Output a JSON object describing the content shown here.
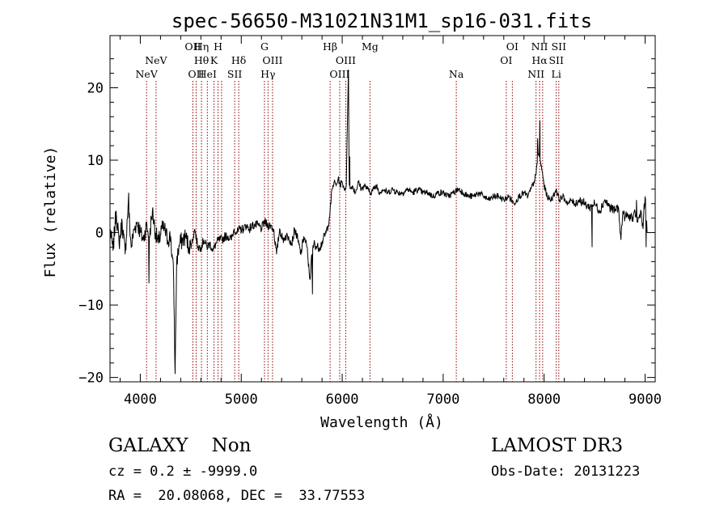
{
  "chart_data": {
    "type": "line",
    "title": "spec-56650-M31021N31M1_sp16-031.fits",
    "xlabel": "Wavelength (Å)",
    "ylabel": "Flux (relative)",
    "xlim": [
      3700,
      9100
    ],
    "ylim": [
      -20.6,
      27.2
    ],
    "x_ticks": [
      4000,
      5000,
      6000,
      7000,
      8000,
      9000
    ],
    "y_ticks": [
      -20,
      -10,
      0,
      10,
      20
    ],
    "grid": false,
    "line_color": "#000000",
    "marker_color": "#8b0000",
    "series": [
      {
        "x": [
          3700,
          3730,
          3760,
          3790,
          3820,
          3850,
          3880,
          3910,
          3940,
          3970,
          4000,
          4030,
          4060,
          4090,
          4120,
          4150,
          4180,
          4210,
          4240,
          4270,
          4300,
          4330,
          4345,
          4360,
          4390,
          4420,
          4450,
          4480,
          4510,
          4540,
          4570,
          4600,
          4630,
          4660,
          4690,
          4720,
          4750,
          4780,
          4810,
          4840,
          4870,
          4900,
          4930,
          4960,
          4990,
          5020,
          5050,
          5080,
          5110,
          5140,
          5170,
          5200,
          5230,
          5260,
          5290,
          5320,
          5350,
          5380,
          5410,
          5440,
          5470,
          5500,
          5530,
          5560,
          5590,
          5620,
          5650,
          5680,
          5700,
          5720,
          5750,
          5780,
          5810,
          5840,
          5860,
          5880,
          5900,
          5920,
          5940,
          5960,
          5980,
          6000,
          6020,
          6040,
          6060,
          6070,
          6080,
          6100,
          6130,
          6160,
          6190,
          6220,
          6250,
          6280,
          6310,
          6340,
          6370,
          6400,
          6450,
          6500,
          6550,
          6600,
          6650,
          6700,
          6750,
          6800,
          6850,
          6900,
          6950,
          7000,
          7050,
          7100,
          7150,
          7200,
          7250,
          7300,
          7350,
          7400,
          7450,
          7500,
          7550,
          7600,
          7650,
          7700,
          7750,
          7800,
          7840,
          7870,
          7900,
          7920,
          7940,
          7960,
          7980,
          8000,
          8030,
          8060,
          8090,
          8120,
          8150,
          8180,
          8210,
          8240,
          8270,
          8300,
          8350,
          8400,
          8450,
          8500,
          8550,
          8600,
          8650,
          8700,
          8720,
          8740,
          8760,
          8780,
          8800,
          8820,
          8840,
          8860,
          8880,
          8900,
          8920,
          8940,
          8960,
          8980,
          9000,
          9020
        ],
        "y": [
          0.5,
          -2.5,
          3.0,
          -1.5,
          1.5,
          -3.0,
          4.0,
          -2.0,
          0.5,
          1.5,
          0.0,
          -1.0,
          1.0,
          -0.5,
          3.0,
          0.0,
          -1.5,
          0.5,
          0.5,
          -1.0,
          -0.5,
          -6.0,
          -19.5,
          -4.0,
          -1.5,
          -1.0,
          -0.5,
          -2.0,
          -1.5,
          0.5,
          -2.0,
          -2.0,
          -1.0,
          -2.0,
          -1.5,
          -2.5,
          -1.5,
          -1.0,
          -1.0,
          -0.5,
          -0.5,
          -1.0,
          0.5,
          0.0,
          0.5,
          0.5,
          1.0,
          0.5,
          1.0,
          1.0,
          1.0,
          0.5,
          1.5,
          1.0,
          1.0,
          0.5,
          -3.0,
          0.5,
          -1.0,
          -0.5,
          -0.5,
          -1.5,
          0.5,
          -1.0,
          -3.0,
          -0.5,
          -2.0,
          -6.5,
          -3.0,
          -1.5,
          -2.0,
          -2.0,
          -1.0,
          0.0,
          1.0,
          3.0,
          6.0,
          7.0,
          6.5,
          7.5,
          6.5,
          7.0,
          6.0,
          6.5,
          22.0,
          6.5,
          6.0,
          6.5,
          5.5,
          7.0,
          6.0,
          6.5,
          6.0,
          5.5,
          6.0,
          6.5,
          5.5,
          6.0,
          5.5,
          6.0,
          5.5,
          5.5,
          6.0,
          5.5,
          6.0,
          5.5,
          5.5,
          5.0,
          5.5,
          5.5,
          5.0,
          5.5,
          6.0,
          5.5,
          5.0,
          5.0,
          5.5,
          5.0,
          4.5,
          5.0,
          5.0,
          4.5,
          5.0,
          4.0,
          5.0,
          5.5,
          5.0,
          6.0,
          7.0,
          8.0,
          11.0,
          10.0,
          8.5,
          6.5,
          5.0,
          4.5,
          5.0,
          6.0,
          4.5,
          5.0,
          4.5,
          4.0,
          4.5,
          4.0,
          4.5,
          4.0,
          3.5,
          4.0,
          3.0,
          4.5,
          3.5,
          3.0,
          3.5,
          3.0,
          -1.0,
          3.0,
          2.0,
          2.5,
          2.0,
          2.5,
          1.5,
          3.0,
          1.5,
          2.0,
          3.0,
          0.5,
          5.0,
          0.0
        ]
      }
    ],
    "spikes": [
      {
        "x": 4345,
        "y": -19.5
      },
      {
        "x": 6062,
        "y": 22.5
      },
      {
        "x": 6075,
        "y": 10.5
      },
      {
        "x": 7958,
        "y": 15.5
      },
      {
        "x": 7935,
        "y": 13.0
      },
      {
        "x": 5705,
        "y": -8.5
      },
      {
        "x": 4085,
        "y": -7.0
      },
      {
        "x": 3885,
        "y": 5.5
      },
      {
        "x": 8475,
        "y": -2.0
      },
      {
        "x": 8915,
        "y": 4.5
      },
      {
        "x": 8990,
        "y": 4.0
      },
      {
        "x": 9010,
        "y": -2.0
      }
    ],
    "line_markers": [
      {
        "x": 4062,
        "labels": [
          "NeV"
        ],
        "rows": [
          4
        ]
      },
      {
        "x": 4156,
        "labels": [
          "NeV"
        ],
        "rows": [
          3
        ]
      },
      {
        "x": 4521,
        "labels": [
          "OII"
        ],
        "rows": [
          2
        ]
      },
      {
        "x": 4553,
        "labels": [
          "OII"
        ],
        "rows": [
          4
        ]
      },
      {
        "x": 4606,
        "labels": [
          "Hη",
          "Hθ"
        ],
        "rows": [
          2,
          3
        ]
      },
      {
        "x": 4664,
        "labels": [
          "HeI"
        ],
        "rows": [
          4
        ]
      },
      {
        "x": 4730,
        "labels": [
          "K"
        ],
        "rows": [
          3
        ]
      },
      {
        "x": 4770,
        "labels": [
          "H"
        ],
        "rows": [
          2
        ]
      },
      {
        "x": 4805,
        "labels": [],
        "rows": []
      },
      {
        "x": 4935,
        "labels": [
          "SII"
        ],
        "rows": [
          4
        ]
      },
      {
        "x": 4975,
        "labels": [
          "Hδ"
        ],
        "rows": [
          3
        ]
      },
      {
        "x": 5230,
        "labels": [
          "G"
        ],
        "rows": [
          2
        ]
      },
      {
        "x": 5265,
        "labels": [
          "Hγ"
        ],
        "rows": [
          4
        ]
      },
      {
        "x": 5310,
        "labels": [
          "OIII"
        ],
        "rows": [
          3
        ]
      },
      {
        "x": 5880,
        "labels": [
          "Hβ"
        ],
        "rows": [
          2
        ]
      },
      {
        "x": 5975,
        "labels": [
          "OIII"
        ],
        "rows": [
          4
        ]
      },
      {
        "x": 6035,
        "labels": [
          "OIII"
        ],
        "rows": [
          3
        ]
      },
      {
        "x": 6275,
        "labels": [
          "Mg"
        ],
        "rows": [
          2
        ]
      },
      {
        "x": 7130,
        "labels": [
          "Na"
        ],
        "rows": [
          4
        ]
      },
      {
        "x": 7625,
        "labels": [
          "OI"
        ],
        "rows": [
          3
        ]
      },
      {
        "x": 7685,
        "labels": [
          "OI"
        ],
        "rows": [
          2
        ]
      },
      {
        "x": 7920,
        "labels": [
          "NII"
        ],
        "rows": [
          4
        ]
      },
      {
        "x": 7955,
        "labels": [
          "Hα",
          "NII"
        ],
        "rows": [
          3,
          2
        ]
      },
      {
        "x": 7985,
        "labels": [],
        "rows": []
      },
      {
        "x": 8120,
        "labels": [
          "SII",
          "Li"
        ],
        "rows": [
          3,
          4
        ]
      },
      {
        "x": 8145,
        "labels": [
          "SII"
        ],
        "rows": [
          2
        ]
      }
    ]
  },
  "info": {
    "class_line": "GALAXY    Non",
    "survey": "LAMOST DR3",
    "cz_line": "cz = 0.2 ± -9999.0",
    "obs_date": "Obs-Date: 20131223",
    "radec_line": "RA =  20.08068, DEC =  33.77553"
  }
}
